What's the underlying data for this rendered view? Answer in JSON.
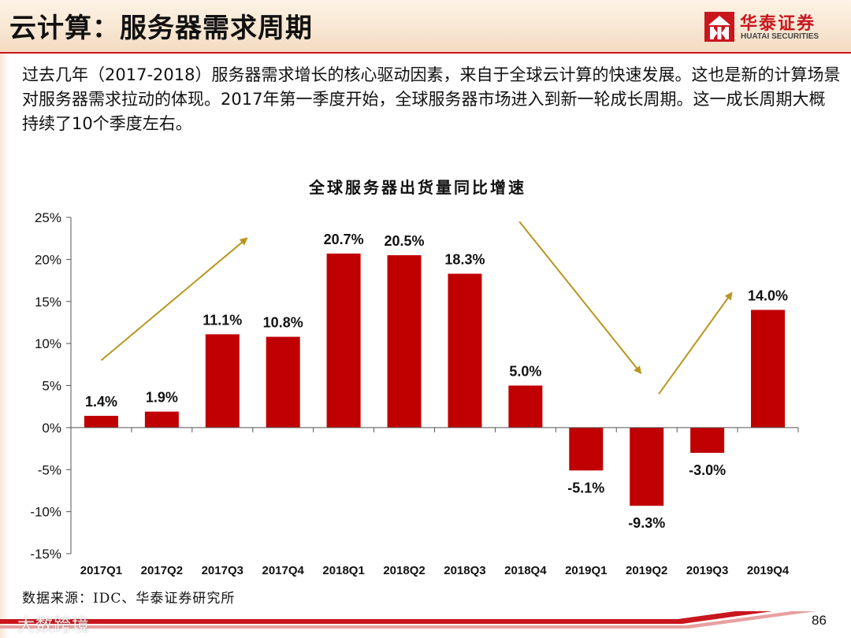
{
  "header": {
    "title": "云计算：服务器需求周期",
    "logo_cn": "华泰证券",
    "logo_en": "HUATAI SECURITIES"
  },
  "intro": {
    "text": "过去几年（2017-2018）服务器需求增长的核心驱动因素，来自于全球云计算的快速发展。这也是新的计算场景对服务器需求拉动的体现。2017年第一季度开始，全球服务器市场进入到新一轮成长周期。这一成长周期大概持续了10个季度左右。"
  },
  "chart_data": {
    "type": "bar",
    "title": "全球服务器出货量同比增速",
    "categories": [
      "2017Q1",
      "2017Q2",
      "2017Q3",
      "2017Q4",
      "2018Q1",
      "2018Q2",
      "2018Q3",
      "2018Q4",
      "2019Q1",
      "2019Q2",
      "2019Q3",
      "2019Q4"
    ],
    "values": [
      1.4,
      1.9,
      11.1,
      10.8,
      20.7,
      20.5,
      18.3,
      5.0,
      -5.1,
      -9.3,
      -3.0,
      14.0
    ],
    "value_labels": [
      "1.4%",
      "1.9%",
      "11.1%",
      "10.8%",
      "20.7%",
      "20.5%",
      "18.3%",
      "5.0%",
      "-5.1%",
      "-9.3%",
      "-3.0%",
      "14.0%"
    ],
    "ylim": [
      -15,
      25
    ],
    "yticks": [
      25,
      20,
      15,
      10,
      5,
      0,
      -5,
      -10,
      -15
    ],
    "ytick_labels": [
      "25%",
      "20%",
      "15%",
      "10%",
      "5%",
      "0%",
      "-5%",
      "-10%",
      "-15%"
    ],
    "xlabel": "",
    "ylabel": "",
    "bar_color": "#c00000",
    "arrow_color": "#b8961e",
    "grid": false,
    "legend": "none",
    "trend_arrows": [
      {
        "from": [
          0,
          8
        ],
        "to": [
          2.4,
          22.5
        ]
      },
      {
        "from": [
          6.9,
          24.5
        ],
        "to": [
          8.9,
          6.5
        ]
      },
      {
        "from": [
          9.2,
          4
        ],
        "to": [
          10.4,
          16
        ]
      }
    ]
  },
  "footer": {
    "source": "数据来源：IDC、华泰证券研究所",
    "page_number": "86",
    "watermark": "大数跨境"
  },
  "colors": {
    "brand_red": "#c8161d",
    "bar_red": "#c00000"
  }
}
